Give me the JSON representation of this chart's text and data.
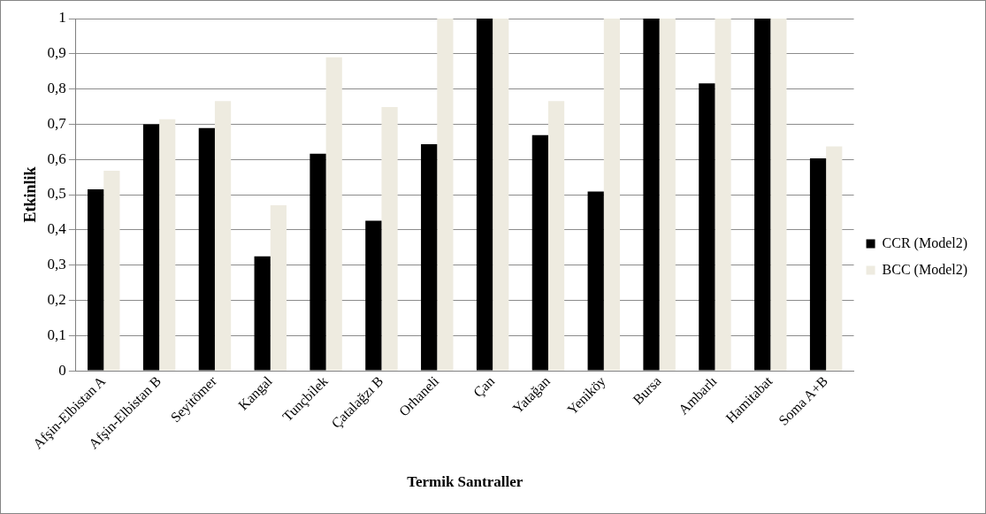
{
  "chart_data": {
    "type": "bar",
    "xlabel": "Termik Santraller",
    "ylabel": "Etkinlik",
    "categories": [
      "Afşin-Elbistan A",
      "Afşin-Elbistan B",
      "Seyitömer",
      "Kangal",
      "Tunçbilek",
      "Çatalağzı B",
      "Orhaneli",
      "Çan",
      "Yatağan",
      "Yeniköy",
      "Bursa",
      "Ambarlı",
      "Hamitabat",
      "Soma A+B"
    ],
    "series": [
      {
        "name": "CCR (Model2)",
        "color": "#000000",
        "values": [
          0.515,
          0.7,
          0.689,
          0.325,
          0.616,
          0.426,
          0.643,
          1,
          0.669,
          0.509,
          1,
          0.816,
          1,
          0.603
        ]
      },
      {
        "name": "BCC (Model2)",
        "color": "#eeebe0",
        "values": [
          0.568,
          0.714,
          0.766,
          0.47,
          0.89,
          0.749,
          1,
          1,
          0.766,
          1,
          1,
          1,
          1,
          0.637
        ]
      }
    ],
    "ylim": [
      0,
      1
    ],
    "yticks": [
      {
        "value": 0,
        "label": "0"
      },
      {
        "value": 0.1,
        "label": "0,1"
      },
      {
        "value": 0.2,
        "label": "0,2"
      },
      {
        "value": 0.3,
        "label": "0,3"
      },
      {
        "value": 0.4,
        "label": "0,4"
      },
      {
        "value": 0.5,
        "label": "0,5"
      },
      {
        "value": 0.6,
        "label": "0,6"
      },
      {
        "value": 0.7,
        "label": "0,7"
      },
      {
        "value": 0.8,
        "label": "0,8"
      },
      {
        "value": 0.9,
        "label": "0,9"
      },
      {
        "value": 1,
        "label": "1"
      }
    ],
    "grid": "y",
    "legend": "right"
  }
}
